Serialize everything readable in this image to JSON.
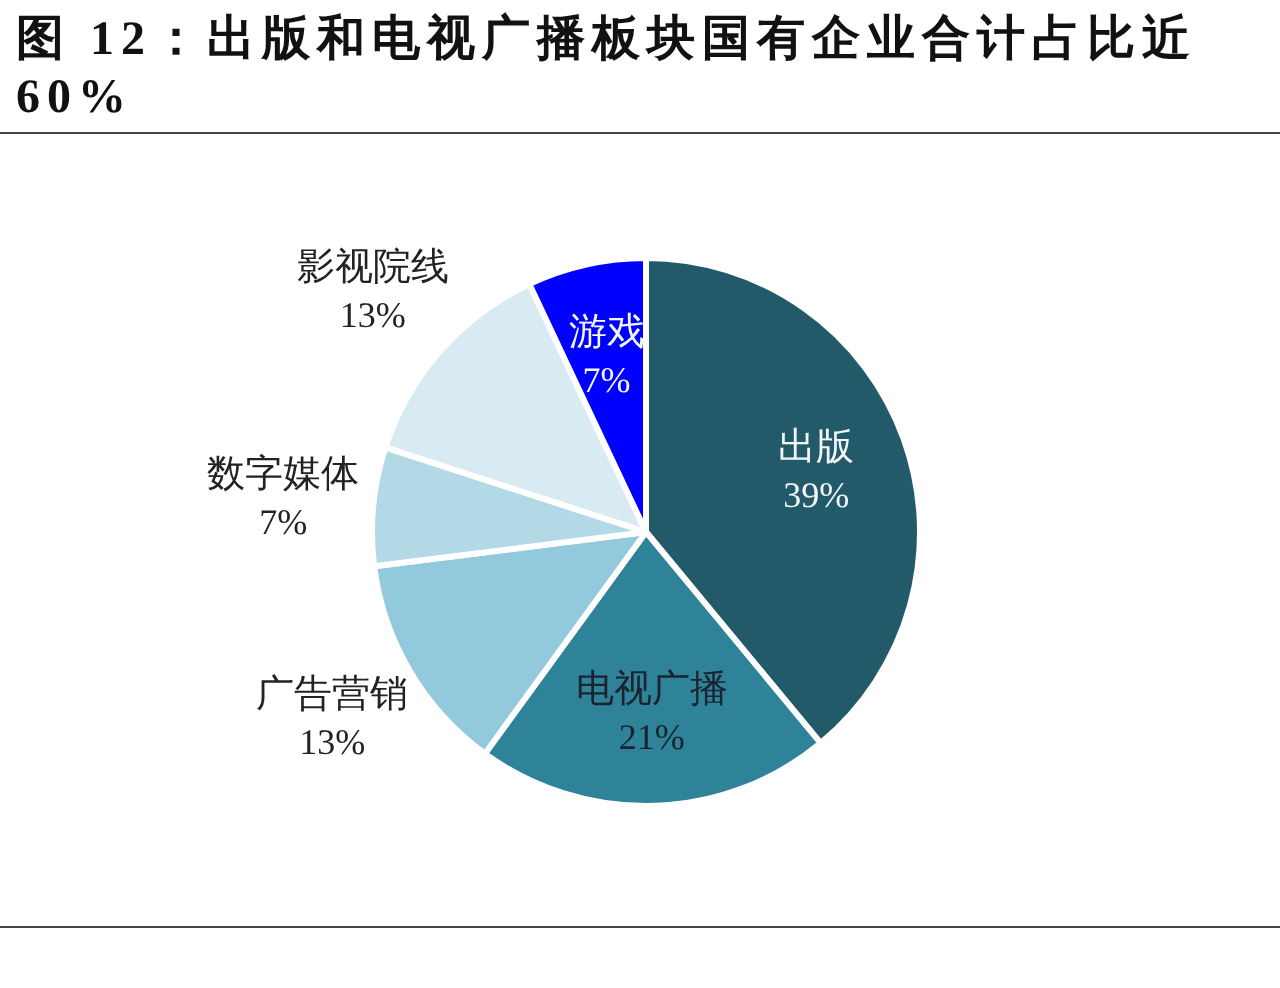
{
  "chart_data": {
    "type": "pie",
    "title": "图 12：出版和电视广播板块国有企业合计占比近60%",
    "categories": [
      "出版",
      "电视广播",
      "广告营销",
      "数字媒体",
      "影视院线",
      "游戏"
    ],
    "values": [
      39,
      21,
      13,
      7,
      13,
      7
    ],
    "value_labels": [
      "39%",
      "21%",
      "13%",
      "7%",
      "13%",
      "7%"
    ],
    "colors": [
      "#235a6a",
      "#2e8399",
      "#92c9dc",
      "#b4d9e6",
      "#d9ebf2",
      "#0000ff"
    ]
  }
}
